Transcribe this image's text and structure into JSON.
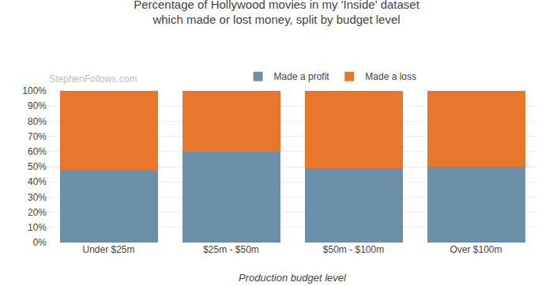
{
  "chart_data": {
    "type": "bar",
    "stacked": true,
    "title": "Percentage of Hollywood movies in my 'Inside' dataset\nwhich made or lost money, split by budget level",
    "xlabel": "Production budget level",
    "annotations": [
      "StephenFollows.com"
    ],
    "categories": [
      "Under $25m",
      "$25m - $50m",
      "$50m - $100m",
      "Over $100m"
    ],
    "series": [
      {
        "name": "Made a profit",
        "color": "#6b8fa8",
        "values": [
          48,
          60,
          49,
          50
        ]
      },
      {
        "name": "Made a loss",
        "color": "#e8762c",
        "values": [
          52,
          40,
          51,
          50
        ]
      }
    ],
    "ylim": [
      0,
      100
    ],
    "yticks": [
      {
        "value": 0,
        "label": "0%"
      },
      {
        "value": 10,
        "label": "10%"
      },
      {
        "value": 20,
        "label": "20%"
      },
      {
        "value": 30,
        "label": "30%"
      },
      {
        "value": 40,
        "label": "40%"
      },
      {
        "value": 50,
        "label": "50%"
      },
      {
        "value": 60,
        "label": "60%"
      },
      {
        "value": 70,
        "label": "70%"
      },
      {
        "value": 80,
        "label": "80%"
      },
      {
        "value": 90,
        "label": "90%"
      },
      {
        "value": 100,
        "label": "100%"
      }
    ],
    "grid": true,
    "legend": "top"
  }
}
